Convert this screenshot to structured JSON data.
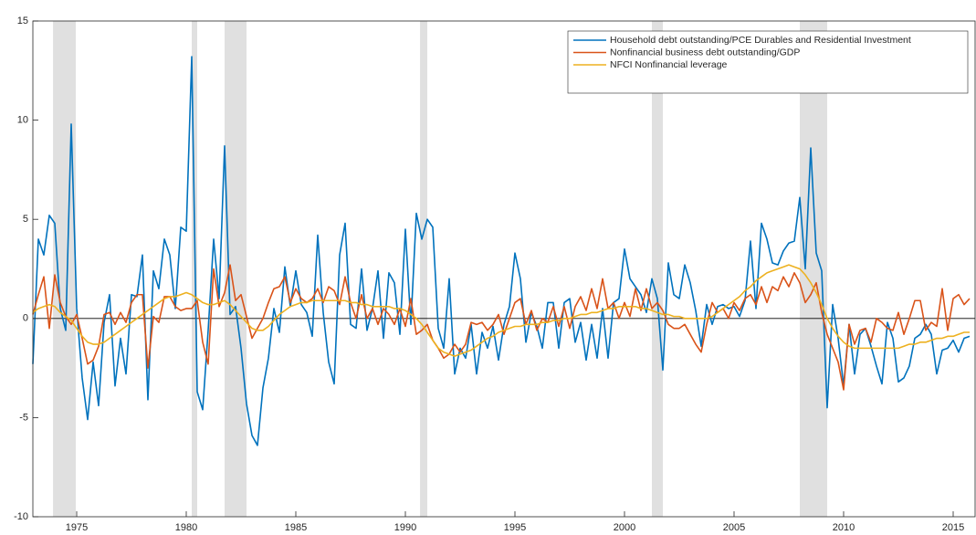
{
  "chart_data": {
    "type": "line",
    "x": [
      1973,
      1973.25,
      1973.5,
      1973.75,
      1974,
      1974.25,
      1974.5,
      1974.75,
      1975,
      1975.25,
      1975.5,
      1975.75,
      1976,
      1976.25,
      1976.5,
      1976.75,
      1977,
      1977.25,
      1977.5,
      1977.75,
      1978,
      1978.25,
      1978.5,
      1978.75,
      1979,
      1979.25,
      1979.5,
      1979.75,
      1980,
      1980.25,
      1980.5,
      1980.75,
      1981,
      1981.25,
      1981.5,
      1981.75,
      1982,
      1982.25,
      1982.5,
      1982.75,
      1983,
      1983.25,
      1983.5,
      1983.75,
      1984,
      1984.25,
      1984.5,
      1984.75,
      1985,
      1985.25,
      1985.5,
      1985.75,
      1986,
      1986.25,
      1986.5,
      1986.75,
      1987,
      1987.25,
      1987.5,
      1987.75,
      1988,
      1988.25,
      1988.5,
      1988.75,
      1989,
      1989.25,
      1989.5,
      1989.75,
      1990,
      1990.25,
      1990.5,
      1990.75,
      1991,
      1991.25,
      1991.5,
      1991.75,
      1992,
      1992.25,
      1992.5,
      1992.75,
      1993,
      1993.25,
      1993.5,
      1993.75,
      1994,
      1994.25,
      1994.5,
      1994.75,
      1995,
      1995.25,
      1995.5,
      1995.75,
      1996,
      1996.25,
      1996.5,
      1996.75,
      1997,
      1997.25,
      1997.5,
      1997.75,
      1998,
      1998.25,
      1998.5,
      1998.75,
      1999,
      1999.25,
      1999.5,
      1999.75,
      2000,
      2000.25,
      2000.5,
      2000.75,
      2001,
      2001.25,
      2001.5,
      2001.75,
      2002,
      2002.25,
      2002.5,
      2002.75,
      2003,
      2003.25,
      2003.5,
      2003.75,
      2004,
      2004.25,
      2004.5,
      2004.75,
      2005,
      2005.25,
      2005.5,
      2005.75,
      2006,
      2006.25,
      2006.5,
      2006.75,
      2007,
      2007.25,
      2007.5,
      2007.75,
      2008,
      2008.25,
      2008.5,
      2008.75,
      2009,
      2009.25,
      2009.5,
      2009.75,
      2010,
      2010.25,
      2010.5,
      2010.75,
      2011,
      2011.25,
      2011.5,
      2011.75,
      2012,
      2012.25,
      2012.5,
      2012.75,
      2013,
      2013.25,
      2013.5,
      2013.75,
      2014,
      2014.25,
      2014.5,
      2014.75,
      2015,
      2015.25,
      2015.5,
      2015.75
    ],
    "series": [
      {
        "name": "Household debt outstanding/PCE Durables and Residential Investment",
        "color": "#0072bd",
        "values": [
          -2.3,
          4.0,
          3.2,
          5.2,
          4.8,
          0.5,
          -0.6,
          9.8,
          0.5,
          -3.0,
          -5.1,
          -2.2,
          -4.4,
          -0.2,
          1.2,
          -3.4,
          -1.0,
          -2.8,
          1.2,
          1.1,
          3.2,
          -4.1,
          2.4,
          1.5,
          4.0,
          3.2,
          0.5,
          4.6,
          4.4,
          13.2,
          -3.7,
          -4.6,
          -0.6,
          4.0,
          1.0,
          8.7,
          0.2,
          0.6,
          -1.5,
          -4.3,
          -5.9,
          -6.4,
          -3.5,
          -2.0,
          0.5,
          -0.7,
          2.6,
          0.6,
          2.4,
          0.7,
          0.3,
          -0.9,
          4.2,
          0.3,
          -2.2,
          -3.3,
          3.2,
          4.8,
          -0.3,
          -0.5,
          2.5,
          -0.6,
          0.5,
          2.4,
          -1.0,
          2.3,
          1.8,
          -0.8,
          4.5,
          -0.3,
          5.3,
          4.0,
          5.0,
          4.6,
          -0.5,
          -1.5,
          2.0,
          -2.8,
          -1.5,
          -2.0,
          -0.3,
          -2.8,
          -0.7,
          -1.5,
          -0.4,
          -2.1,
          -0.3,
          0.6,
          3.3,
          2.0,
          -1.2,
          0.3,
          -0.4,
          -1.5,
          0.8,
          0.8,
          -1.5,
          0.8,
          1.0,
          -1.2,
          -0.2,
          -2.1,
          -0.3,
          -2.0,
          0.5,
          -2.0,
          0.8,
          1.0,
          3.5,
          2.0,
          1.6,
          1.2,
          0.3,
          2.0,
          1.0,
          -2.6,
          2.8,
          1.2,
          1.0,
          2.7,
          1.8,
          0.4,
          -1.4,
          0.7,
          -0.3,
          0.6,
          0.7,
          0.5,
          0.6,
          0.1,
          0.9,
          3.9,
          0.5,
          4.8,
          4.0,
          2.8,
          2.7,
          3.4,
          3.8,
          3.9,
          6.1,
          2.5,
          8.6,
          3.3,
          2.4,
          -4.5,
          0.7,
          -1.0,
          -3.4,
          -0.3,
          -2.8,
          -0.8,
          -0.5,
          -1.4,
          -2.4,
          -3.3,
          -0.2,
          -1.0,
          -3.2,
          -3.0,
          -2.4,
          -1.0,
          -0.8,
          -0.3,
          -0.8,
          -2.8,
          -1.6,
          -1.5,
          -1.1,
          -1.7,
          -1.0,
          -0.9
        ]
      },
      {
        "name": "Nonfinancial business debt outstanding/GDP",
        "color": "#d95319",
        "values": [
          0.2,
          1.2,
          2.1,
          -0.5,
          2.2,
          0.8,
          0.1,
          -0.3,
          0.2,
          -1.0,
          -2.3,
          -2.1,
          -1.4,
          0.2,
          0.3,
          -0.3,
          0.3,
          -0.2,
          0.8,
          1.2,
          1.2,
          -2.5,
          0.1,
          -0.2,
          1.1,
          1.1,
          0.6,
          0.4,
          0.5,
          0.5,
          0.9,
          -1.2,
          -2.3,
          2.5,
          0.6,
          1.3,
          2.7,
          0.9,
          1.2,
          0.1,
          -1.0,
          -0.5,
          0.0,
          0.8,
          1.5,
          1.6,
          2.1,
          0.8,
          1.5,
          1.0,
          0.8,
          1.0,
          1.5,
          0.8,
          1.6,
          1.4,
          0.7,
          2.1,
          0.8,
          0.0,
          1.2,
          0.0,
          0.5,
          -0.3,
          0.5,
          0.2,
          -0.3,
          0.5,
          -0.4,
          1.0,
          -0.8,
          -0.6,
          -0.3,
          -1.1,
          -1.5,
          -2.0,
          -1.8,
          -1.3,
          -1.7,
          -1.3,
          -0.2,
          -0.3,
          -0.2,
          -0.6,
          -0.3,
          0.2,
          -0.8,
          0.0,
          0.8,
          1.0,
          -0.3,
          0.4,
          -0.6,
          0.0,
          -0.2,
          0.6,
          -0.4,
          0.6,
          -0.5,
          0.6,
          1.1,
          0.4,
          1.5,
          0.5,
          2.0,
          0.5,
          0.8,
          0.0,
          0.8,
          0.1,
          1.5,
          0.4,
          1.5,
          0.5,
          0.8,
          0.4,
          -0.3,
          -0.5,
          -0.5,
          -0.3,
          -0.8,
          -1.3,
          -1.7,
          -0.3,
          0.8,
          0.3,
          0.5,
          0.0,
          0.8,
          0.4,
          1.0,
          1.2,
          0.7,
          1.6,
          0.8,
          1.6,
          1.4,
          2.1,
          1.6,
          2.3,
          1.8,
          0.8,
          1.2,
          1.8,
          0.3,
          -0.8,
          -1.5,
          -2.2,
          -3.6,
          -0.3,
          -1.3,
          -0.6,
          -0.5,
          -1.2,
          0.0,
          -0.2,
          -0.5,
          -0.6,
          0.3,
          -0.8,
          0.0,
          0.9,
          0.9,
          -0.6,
          -0.2,
          -0.4,
          1.5,
          -0.6,
          1.0,
          1.2,
          0.7,
          1.0
        ]
      },
      {
        "name": "NFCI Nonfinancial leverage",
        "color": "#edb120",
        "values": [
          0.3,
          0.5,
          0.6,
          0.7,
          0.6,
          0.3,
          0.1,
          -0.1,
          -0.5,
          -0.9,
          -1.2,
          -1.3,
          -1.3,
          -1.2,
          -1.0,
          -0.8,
          -0.6,
          -0.4,
          -0.2,
          0.0,
          0.2,
          0.4,
          0.6,
          0.8,
          1.0,
          1.1,
          1.1,
          1.2,
          1.3,
          1.2,
          1.0,
          0.8,
          0.7,
          0.7,
          0.8,
          0.9,
          0.7,
          0.4,
          0.1,
          -0.2,
          -0.5,
          -0.6,
          -0.6,
          -0.4,
          -0.1,
          0.2,
          0.4,
          0.6,
          0.7,
          0.8,
          0.8,
          0.9,
          0.9,
          0.9,
          0.9,
          0.9,
          0.9,
          0.9,
          0.8,
          0.8,
          0.7,
          0.7,
          0.6,
          0.6,
          0.6,
          0.6,
          0.5,
          0.5,
          0.4,
          0.2,
          0.0,
          -0.3,
          -0.7,
          -1.1,
          -1.5,
          -1.7,
          -1.8,
          -1.9,
          -1.8,
          -1.7,
          -1.6,
          -1.4,
          -1.2,
          -1.0,
          -0.9,
          -0.7,
          -0.6,
          -0.5,
          -0.4,
          -0.4,
          -0.3,
          -0.3,
          -0.3,
          -0.2,
          -0.2,
          -0.1,
          -0.1,
          0.0,
          0.0,
          0.1,
          0.2,
          0.2,
          0.3,
          0.3,
          0.4,
          0.5,
          0.5,
          0.6,
          0.6,
          0.6,
          0.6,
          0.5,
          0.5,
          0.4,
          0.3,
          0.2,
          0.2,
          0.1,
          0.1,
          0.0,
          0.0,
          0.0,
          0.0,
          0.0,
          0.1,
          0.3,
          0.5,
          0.7,
          0.9,
          1.1,
          1.4,
          1.6,
          1.9,
          2.1,
          2.3,
          2.4,
          2.5,
          2.6,
          2.7,
          2.6,
          2.5,
          2.2,
          1.8,
          1.3,
          0.7,
          0.0,
          -0.5,
          -0.9,
          -1.2,
          -1.4,
          -1.5,
          -1.5,
          -1.5,
          -1.5,
          -1.5,
          -1.5,
          -1.5,
          -1.5,
          -1.5,
          -1.4,
          -1.3,
          -1.3,
          -1.2,
          -1.2,
          -1.1,
          -1.0,
          -1.0,
          -0.9,
          -0.9,
          -0.8,
          -0.7,
          -0.7
        ]
      }
    ],
    "recessions": [
      [
        1973.92,
        1974.96
      ],
      [
        1980.25,
        1980.5
      ],
      [
        1981.75,
        1982.75
      ],
      [
        1990.67,
        1991.0
      ],
      [
        2001.25,
        2001.75
      ],
      [
        2008.0,
        2009.25
      ]
    ],
    "recession_color": "#e0e0e0",
    "zero_line": 0,
    "xlim": [
      1973,
      2016
    ],
    "xticks": [
      1975,
      1980,
      1985,
      1990,
      1995,
      2000,
      2005,
      2010,
      2015
    ],
    "ylim": [
      -10,
      15
    ],
    "yticks": [
      -10,
      -5,
      0,
      5,
      10,
      15
    ],
    "legend": "top-right"
  }
}
